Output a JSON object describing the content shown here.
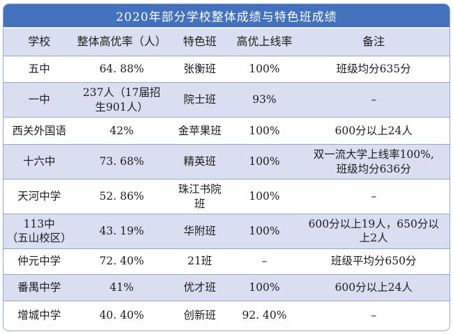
{
  "colors": {
    "title_bg": "#4471BE",
    "title_text": "#FFFFFF",
    "row_alt_bg": "#D9DEF1",
    "row_bg": "#FFFFFF",
    "row_border": "#9CA6BC",
    "outer_border": "#8EA9DB",
    "body_text": "#1C1C1C"
  },
  "chart_data": {
    "type": "table",
    "title": "2020年部分学校整体成绩与特色班成绩",
    "columns": [
      "学校",
      "整体高优率（人）",
      "特色班",
      "高优上线率",
      "备注"
    ],
    "rows": [
      [
        "五中",
        "64. 88%",
        "张衡班",
        "100%",
        "班级均分635分"
      ],
      [
        "一中",
        "237人（17届招\n生901人）",
        "院士班",
        "93%",
        "–"
      ],
      [
        "西关外国语",
        "42%",
        "金苹果班",
        "100%",
        "600分以上24人"
      ],
      [
        "十六中",
        "73. 68%",
        "精英班",
        "100%",
        "双一流大学上线率100%,\n班级均分636分"
      ],
      [
        "天河中学",
        "52. 86%",
        "珠江书院\n班",
        "100%",
        "–"
      ],
      [
        "113中\n（五山校区）",
        "43. 19%",
        "华附班",
        "100%",
        "600分以上19人，650分以\n上2人"
      ],
      [
        "仲元中学",
        "72. 40%",
        "21班",
        "–",
        "班级平均分650分"
      ],
      [
        "番禺中学",
        "41%",
        "优才班",
        "100%",
        "600分以上24人"
      ],
      [
        "增城中学",
        "40. 40%",
        "创新班",
        "92. 40%",
        "–"
      ]
    ]
  }
}
